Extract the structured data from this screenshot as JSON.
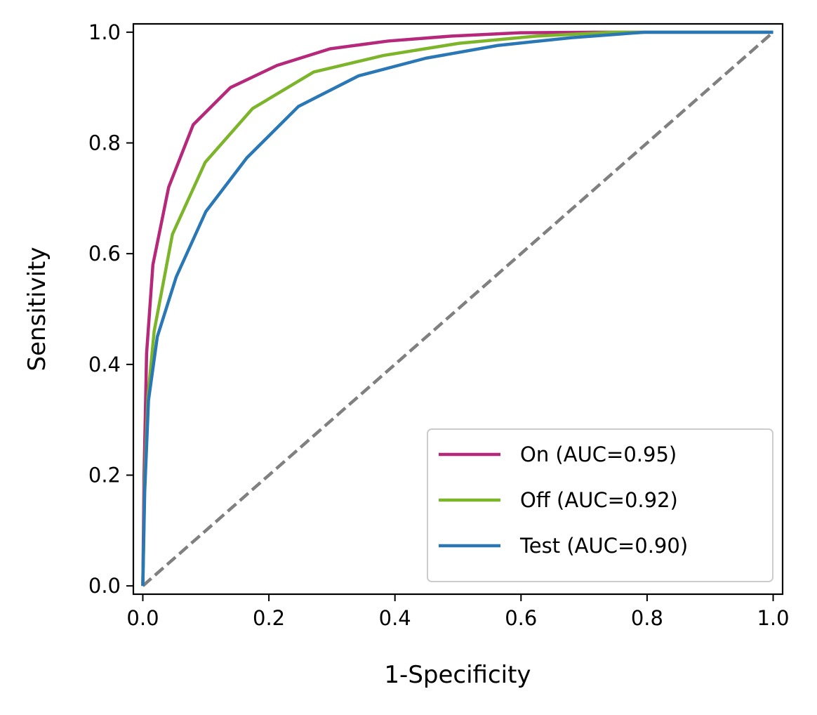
{
  "chart_data": {
    "type": "line",
    "title": "",
    "xlabel": "1-Specificity",
    "ylabel": "Sensitivity",
    "xlim": [
      -0.015,
      1.015
    ],
    "ylim": [
      -0.015,
      1.015
    ],
    "xticks": [
      0.0,
      0.2,
      0.4,
      0.6,
      0.8,
      1.0
    ],
    "yticks": [
      0.0,
      0.2,
      0.4,
      0.6,
      0.8,
      1.0
    ],
    "xtick_labels": [
      "0.0",
      "0.2",
      "0.4",
      "0.6",
      "0.8",
      "1.0"
    ],
    "ytick_labels": [
      "0.0",
      "0.2",
      "0.4",
      "0.6",
      "0.8",
      "1.0"
    ],
    "grid": false,
    "legend": {
      "position": "lower-right"
    },
    "series": [
      {
        "name": "On (AUC=0.95)",
        "color": "#b5287a",
        "x": [
          0.0,
          0.002,
          0.006,
          0.016,
          0.041,
          0.08,
          0.139,
          0.213,
          0.297,
          0.389,
          0.49,
          0.599,
          0.716,
          0.84,
          1.0
        ],
        "y": [
          0.0,
          0.2,
          0.42,
          0.58,
          0.72,
          0.833,
          0.9,
          0.94,
          0.97,
          0.984,
          0.993,
          0.999,
          1.0,
          1.0,
          1.0
        ]
      },
      {
        "name": "Off (AUC=0.92)",
        "color": "#7db52a",
        "x": [
          0.0,
          0.003,
          0.008,
          0.018,
          0.047,
          0.099,
          0.174,
          0.271,
          0.382,
          0.502,
          0.625,
          0.748,
          0.87,
          1.0
        ],
        "y": [
          0.0,
          0.19,
          0.34,
          0.46,
          0.635,
          0.765,
          0.862,
          0.928,
          0.958,
          0.98,
          0.993,
          1.0,
          1.0,
          1.0
        ]
      },
      {
        "name": "Test (AUC=0.90)",
        "color": "#2977b5",
        "x": [
          0.0,
          0.003,
          0.009,
          0.023,
          0.053,
          0.1,
          0.165,
          0.247,
          0.342,
          0.449,
          0.563,
          0.679,
          0.796,
          0.906,
          1.0
        ],
        "y": [
          0.0,
          0.17,
          0.335,
          0.45,
          0.558,
          0.676,
          0.773,
          0.866,
          0.921,
          0.953,
          0.976,
          0.99,
          1.0,
          1.0,
          1.0
        ]
      }
    ],
    "reference_line": {
      "x": [
        0.0,
        1.0
      ],
      "y": [
        0.0,
        1.0
      ],
      "color": "#808080",
      "style": "dashed"
    }
  }
}
